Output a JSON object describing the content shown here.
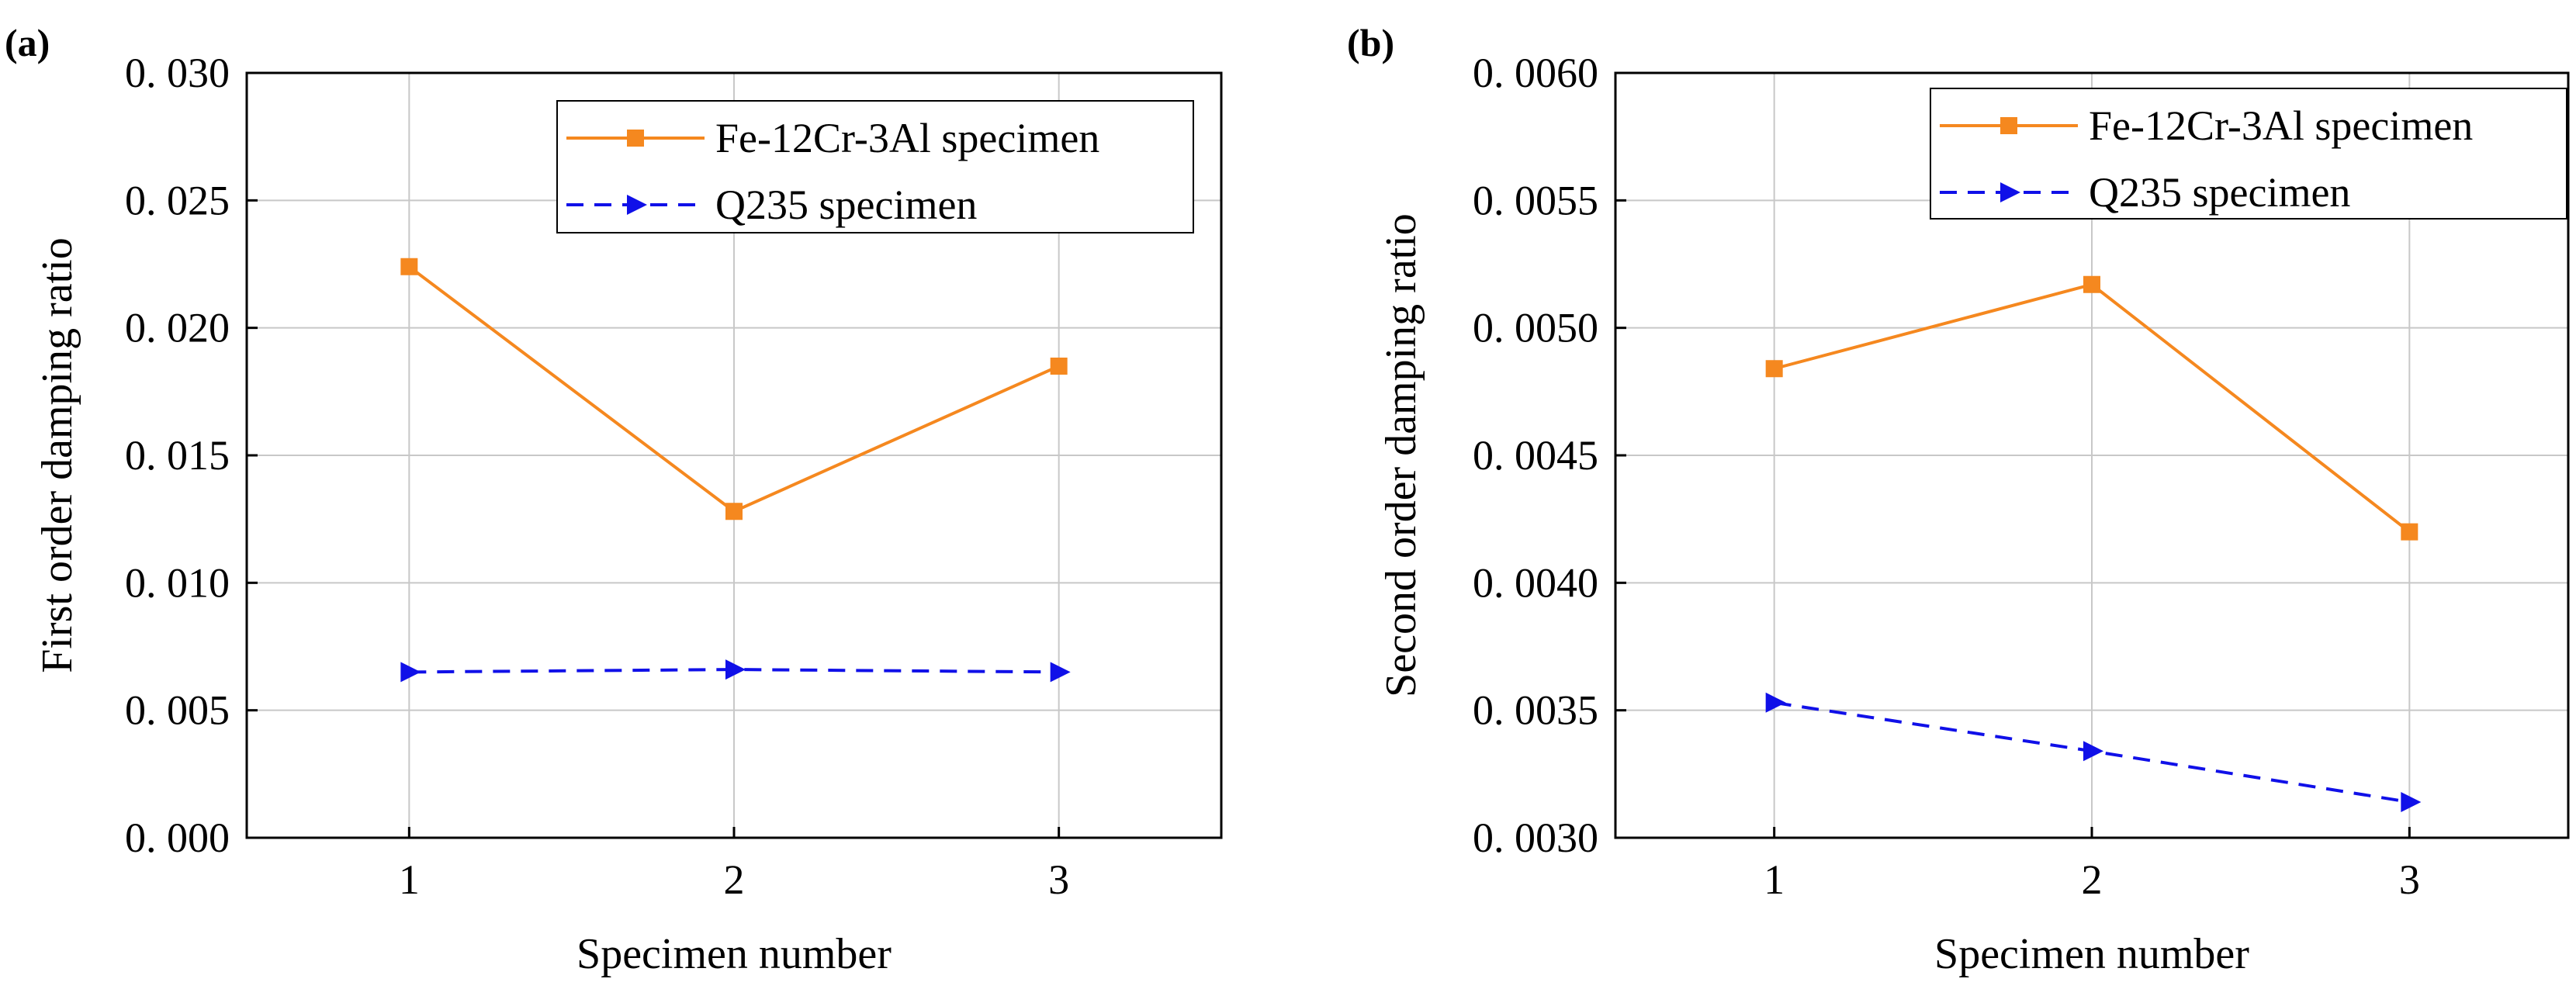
{
  "chart_data": [
    {
      "type": "line",
      "panel_label": "(a)",
      "xlabel": "Specimen number",
      "ylabel": "First order damping ratio",
      "categories": [
        1,
        2,
        3
      ],
      "x_tick_labels": [
        "1",
        "2",
        "3"
      ],
      "xlim": [
        0.5,
        3.5
      ],
      "ylim": [
        0.0,
        0.03
      ],
      "y_ticks": [
        0.0,
        0.005,
        0.01,
        0.015,
        0.02,
        0.025,
        0.03
      ],
      "y_tick_labels": [
        "0. 000",
        "0. 005",
        "0. 010",
        "0. 015",
        "0. 020",
        "0. 025",
        "0. 030"
      ],
      "grid": true,
      "legend_position": "top-right",
      "series": [
        {
          "name": "Fe-12Cr-3Al specimen",
          "values": [
            0.0224,
            0.0128,
            0.0185
          ],
          "color": "#f5881f",
          "line_style": "solid",
          "marker": "square"
        },
        {
          "name": "Q235 specimen",
          "values": [
            0.0065,
            0.0066,
            0.0065
          ],
          "color": "#1010e8",
          "line_style": "dashed",
          "marker": "triangle-right"
        }
      ]
    },
    {
      "type": "line",
      "panel_label": "(b)",
      "xlabel": "Specimen number",
      "ylabel": "Second order damping ratio",
      "categories": [
        1,
        2,
        3
      ],
      "x_tick_labels": [
        "1",
        "2",
        "3"
      ],
      "xlim": [
        0.5,
        3.5
      ],
      "ylim": [
        0.003,
        0.006
      ],
      "y_ticks": [
        0.003,
        0.0035,
        0.004,
        0.0045,
        0.005,
        0.0055,
        0.006
      ],
      "y_tick_labels": [
        "0. 0030",
        "0. 0035",
        "0. 0040",
        "0. 0045",
        "0. 0050",
        "0. 0055",
        "0. 0060"
      ],
      "grid": true,
      "legend_position": "top-right",
      "series": [
        {
          "name": "Fe-12Cr-3Al specimen",
          "values": [
            0.00484,
            0.00517,
            0.0042
          ],
          "color": "#f5881f",
          "line_style": "solid",
          "marker": "square"
        },
        {
          "name": "Q235 specimen",
          "values": [
            0.00353,
            0.00334,
            0.00314
          ],
          "color": "#1010e8",
          "line_style": "dashed",
          "marker": "triangle-right"
        }
      ]
    }
  ]
}
